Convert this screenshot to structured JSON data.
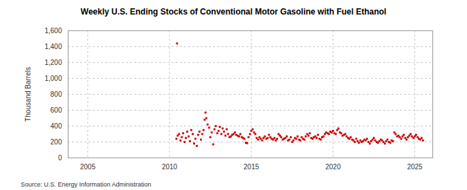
{
  "chart_data": {
    "type": "scatter",
    "title": "Weekly U.S. Ending Stocks of Conventional Motor Gasoline with Fuel Ethanol",
    "y_label": "Thousand Barrels",
    "source": "Source: U.S. Energy Information Administration",
    "color": "#cc0000",
    "marker": "square",
    "grid": true,
    "xlim": [
      2003.8,
      2026.1
    ],
    "xticks": [
      2005,
      2010,
      2015,
      2020,
      2025
    ],
    "ylim": [
      0,
      1600
    ],
    "yticks": [
      0,
      200,
      400,
      600,
      800,
      {
        "value": 1000,
        "label": "1,000"
      },
      {
        "value": 1200,
        "label": "1,200"
      },
      {
        "value": 1400,
        "label": "1,400"
      },
      {
        "value": 1600,
        "label": "1,600"
      }
    ],
    "x": [
      2010.42,
      2010.46,
      2010.5,
      2010.58,
      2010.67,
      2010.75,
      2010.83,
      2010.92,
      2011.0,
      2011.08,
      2011.17,
      2011.25,
      2011.33,
      2011.42,
      2011.5,
      2011.58,
      2011.67,
      2011.75,
      2011.83,
      2011.92,
      2012.0,
      2012.08,
      2012.15,
      2012.2,
      2012.25,
      2012.33,
      2012.42,
      2012.5,
      2012.58,
      2012.67,
      2012.75,
      2012.83,
      2012.92,
      2013.0,
      2013.08,
      2013.17,
      2013.25,
      2013.33,
      2013.42,
      2013.5,
      2013.58,
      2013.67,
      2013.75,
      2013.83,
      2013.92,
      2014.0,
      2014.08,
      2014.17,
      2014.25,
      2014.33,
      2014.42,
      2014.5,
      2014.58,
      2014.67,
      2014.75,
      2014.83,
      2014.92,
      2015.0,
      2015.08,
      2015.17,
      2015.25,
      2015.33,
      2015.42,
      2015.5,
      2015.58,
      2015.67,
      2015.75,
      2015.83,
      2015.92,
      2016.0,
      2016.08,
      2016.17,
      2016.25,
      2016.33,
      2016.42,
      2016.5,
      2016.58,
      2016.67,
      2016.75,
      2016.83,
      2016.92,
      2017.0,
      2017.08,
      2017.17,
      2017.25,
      2017.33,
      2017.42,
      2017.5,
      2017.58,
      2017.67,
      2017.75,
      2017.83,
      2017.92,
      2018.0,
      2018.08,
      2018.17,
      2018.25,
      2018.33,
      2018.42,
      2018.5,
      2018.58,
      2018.67,
      2018.75,
      2018.83,
      2018.92,
      2019.0,
      2019.08,
      2019.17,
      2019.25,
      2019.33,
      2019.42,
      2019.5,
      2019.58,
      2019.67,
      2019.75,
      2019.83,
      2019.92,
      2020.0,
      2020.08,
      2020.17,
      2020.25,
      2020.33,
      2020.42,
      2020.5,
      2020.58,
      2020.67,
      2020.75,
      2020.83,
      2020.92,
      2021.0,
      2021.08,
      2021.17,
      2021.25,
      2021.33,
      2021.42,
      2021.5,
      2021.58,
      2021.67,
      2021.75,
      2021.83,
      2021.92,
      2022.0,
      2022.08,
      2022.17,
      2022.25,
      2022.33,
      2022.42,
      2022.5,
      2022.58,
      2022.67,
      2022.75,
      2022.83,
      2022.92,
      2023.0,
      2023.08,
      2023.17,
      2023.25,
      2023.33,
      2023.42,
      2023.5,
      2023.58,
      2023.67,
      2023.75,
      2023.83,
      2023.92,
      2024.0,
      2024.08,
      2024.17,
      2024.25,
      2024.33,
      2024.42,
      2024.5,
      2024.58,
      2024.67,
      2024.75,
      2024.83,
      2024.92,
      2025.0,
      2025.08,
      2025.17,
      2025.25,
      2025.33,
      2025.42,
      2025.5
    ],
    "values": [
      240,
      1440,
      280,
      300,
      220,
      260,
      310,
      200,
      250,
      330,
      270,
      210,
      350,
      300,
      180,
      240,
      150,
      290,
      330,
      230,
      300,
      350,
      480,
      570,
      500,
      420,
      380,
      260,
      320,
      170,
      360,
      400,
      310,
      340,
      390,
      300,
      370,
      330,
      280,
      360,
      300,
      260,
      270,
      290,
      300,
      320,
      290,
      280,
      270,
      300,
      260,
      250,
      240,
      190,
      185,
      260,
      300,
      340,
      360,
      320,
      300,
      250,
      230,
      260,
      240,
      220,
      250,
      270,
      240,
      250,
      290,
      260,
      240,
      230,
      250,
      220,
      240,
      300,
      280,
      260,
      230,
      240,
      250,
      270,
      220,
      230,
      260,
      200,
      220,
      250,
      240,
      270,
      230,
      220,
      260,
      240,
      230,
      270,
      300,
      280,
      310,
      250,
      240,
      260,
      270,
      250,
      290,
      240,
      230,
      260,
      270,
      300,
      320,
      310,
      300,
      330,
      320,
      340,
      310,
      300,
      350,
      370,
      320,
      310,
      280,
      290,
      300,
      270,
      250,
      240,
      260,
      230,
      220,
      200,
      240,
      210,
      190,
      220,
      200,
      210,
      230,
      220,
      240,
      200,
      180,
      210,
      230,
      250,
      220,
      200,
      190,
      210,
      230,
      220,
      200,
      180,
      210,
      230,
      200,
      190,
      220,
      210,
      320,
      300,
      270,
      280,
      260,
      240,
      270,
      290,
      250,
      230,
      260,
      280,
      300,
      270,
      250,
      270,
      290,
      260,
      240,
      230,
      250,
      220
    ]
  }
}
